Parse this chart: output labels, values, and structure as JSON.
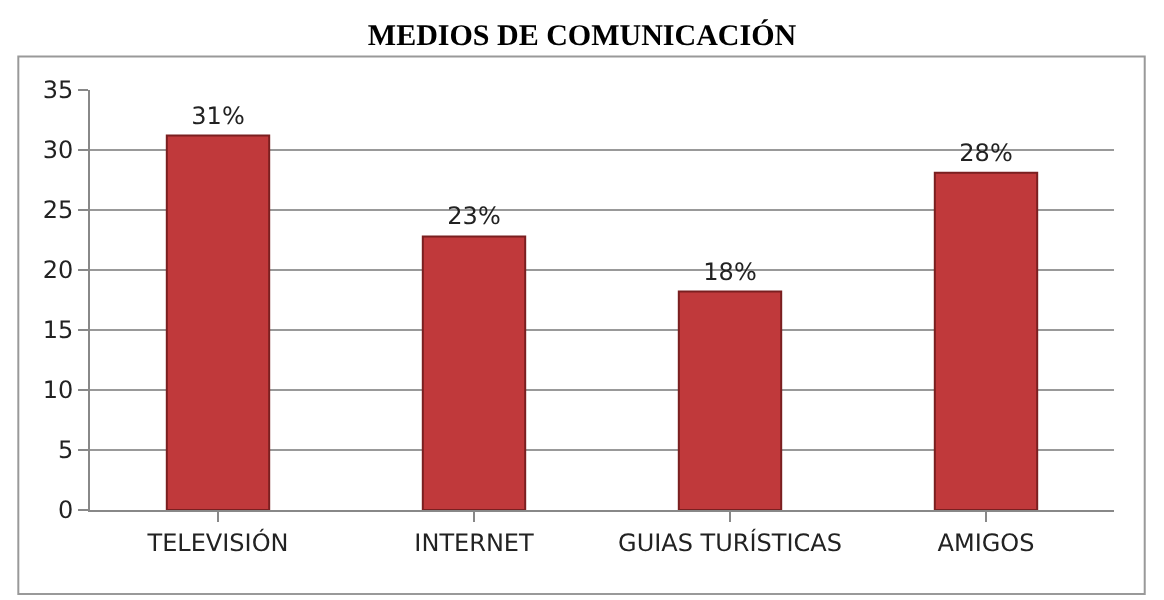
{
  "chart_data": {
    "type": "bar",
    "title": "MEDIOS DE COMUNICACIÓN",
    "categories": [
      "TELEVISIÓN",
      "INTERNET",
      "GUIAS TURÍSTICAS",
      "AMIGOS"
    ],
    "values": [
      31.2,
      22.8,
      18.2,
      28.1
    ],
    "value_labels": [
      "31%",
      "23%",
      "18%",
      "28%"
    ],
    "color": "#c0393b",
    "ylim": [
      0,
      35
    ],
    "yticks": [
      0,
      5,
      10,
      15,
      20,
      25,
      30,
      35
    ],
    "grid": "y"
  }
}
